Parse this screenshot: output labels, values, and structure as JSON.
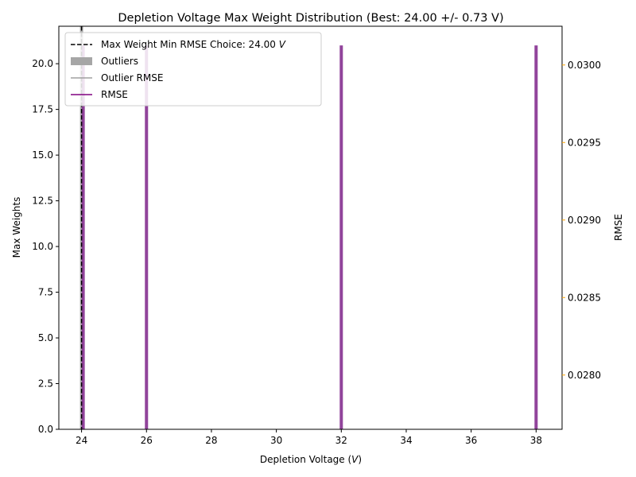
{
  "chart_data": {
    "type": "bar",
    "title": "Depletion Voltage Max Weight Distribution (Best: 24.00 +/- 0.73 V)",
    "xlabel": "Depletion Voltage (V)",
    "ylabel": "Max Weights",
    "y2label": "RMSE",
    "xlim": [
      23.3,
      38.8
    ],
    "ylim": [
      0,
      22.05
    ],
    "y2lim": [
      0.02765,
      0.03025
    ],
    "xticks": [
      "24",
      "26",
      "28",
      "30",
      "32",
      "34",
      "36",
      "38"
    ],
    "xtick_values": [
      24,
      26,
      28,
      30,
      32,
      34,
      36,
      38
    ],
    "yticks": [
      "0.0",
      "2.5",
      "5.0",
      "7.5",
      "10.0",
      "12.5",
      "15.0",
      "17.5",
      "20.0"
    ],
    "ytick_values": [
      0,
      2.5,
      5,
      7.5,
      10,
      12.5,
      15,
      17.5,
      20
    ],
    "y2ticks": [
      "0.0280",
      "0.0285",
      "0.0290",
      "0.0295",
      "0.0300"
    ],
    "y2tick_values": [
      0.028,
      0.0285,
      0.029,
      0.0295,
      0.03
    ],
    "best_line_x": 24.0,
    "series": [
      {
        "name": "Outliers",
        "kind": "bar",
        "x": [
          24.0
        ],
        "values": [
          22.5
        ],
        "color": "#a6a6a6"
      },
      {
        "name": "RMSE",
        "kind": "bar",
        "x": [
          24.05,
          26.0,
          32.0,
          38.0
        ],
        "values": [
          21,
          21,
          21,
          21
        ],
        "color": "#8b3a96"
      }
    ],
    "legend": {
      "position": "top-left",
      "entries": [
        {
          "label": "Max Weight Min RMSE Choice: 24.00 V",
          "style": "dashed-line",
          "color": "#000000"
        },
        {
          "label": "Outliers",
          "style": "patch",
          "color": "#a6a6a6"
        },
        {
          "label": "Outlier RMSE",
          "style": "line",
          "color": "#a0a0a0"
        },
        {
          "label": "RMSE",
          "style": "line",
          "color": "#800080"
        }
      ]
    },
    "colors": {
      "rmse_axis": "#ffa500"
    }
  }
}
